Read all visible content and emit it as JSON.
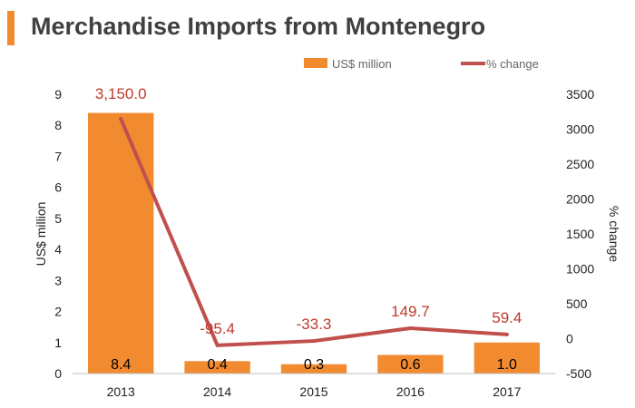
{
  "title": "Merchandise Imports from Montenegro",
  "colors": {
    "accent": "#f28b30",
    "bar": "#f28b30",
    "line": "#c0504d",
    "line_label": "#c0392b"
  },
  "chart_data": {
    "type": "bar",
    "categories": [
      "2013",
      "2014",
      "2015",
      "2016",
      "2017"
    ],
    "series": [
      {
        "name": "US$ million",
        "type": "bar",
        "axis": "left",
        "values": [
          8.4,
          0.4,
          0.3,
          0.6,
          1.0
        ],
        "labels": [
          "8.4",
          "0.4",
          "0.3",
          "0.6",
          "1.0"
        ]
      },
      {
        "name": "% change",
        "type": "line",
        "axis": "right",
        "values": [
          3150.0,
          -95.4,
          -33.3,
          149.7,
          59.4
        ],
        "labels": [
          "3,150.0",
          "-95.4",
          "-33.3",
          "149.7",
          "59.4"
        ]
      }
    ],
    "ylabel": "US$ million",
    "y2label": "% change",
    "ylim": [
      0,
      9
    ],
    "yticks": [
      "0",
      "1",
      "2",
      "3",
      "4",
      "5",
      "6",
      "7",
      "8",
      "9"
    ],
    "y2lim": [
      -500,
      3500
    ],
    "y2ticks": [
      "-500",
      "0",
      "500",
      "1000",
      "1500",
      "2000",
      "2500",
      "3000",
      "3500"
    ],
    "legend_position": "top",
    "grid": false
  }
}
